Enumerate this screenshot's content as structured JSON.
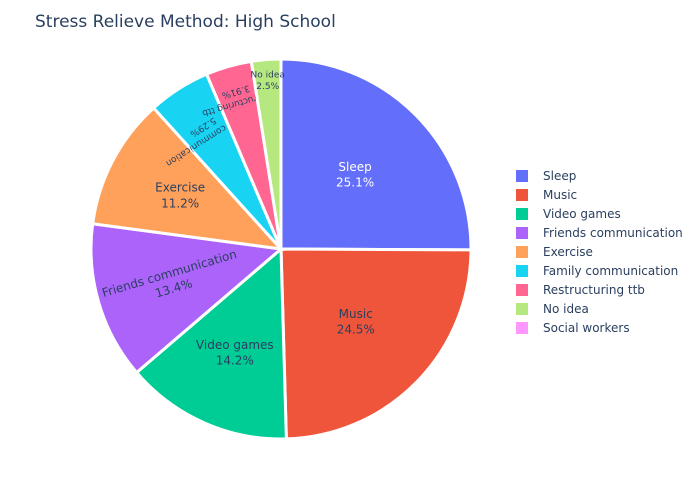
{
  "chart_data": {
    "type": "pie",
    "title": "Stress Relieve Method: High School",
    "legend_position": "right",
    "slices": [
      {
        "label": "Sleep",
        "percent": "25.1%",
        "value": 25.1,
        "color": "#636efa"
      },
      {
        "label": "Music",
        "percent": "24.5%",
        "value": 24.5,
        "color": "#ef553b"
      },
      {
        "label": "Video games",
        "percent": "14.2%",
        "value": 14.2,
        "color": "#00cc96"
      },
      {
        "label": "Friends communication",
        "percent": "13.4%",
        "value": 13.4,
        "color": "#ab63fa"
      },
      {
        "label": "Exercise",
        "percent": "11.2%",
        "value": 11.2,
        "color": "#ffa15a"
      },
      {
        "label": "Family communication",
        "percent": "5.29%",
        "value": 5.29,
        "color": "#19d3f3"
      },
      {
        "label": "Restructuring ttb",
        "percent": "3.91%",
        "value": 3.91,
        "color": "#ff6692"
      },
      {
        "label": "No idea",
        "percent": "2.5%",
        "value": 2.5,
        "color": "#b6e880"
      },
      {
        "label": "Social workers",
        "percent": "",
        "value": 0,
        "color": "#ff97ff"
      }
    ]
  }
}
